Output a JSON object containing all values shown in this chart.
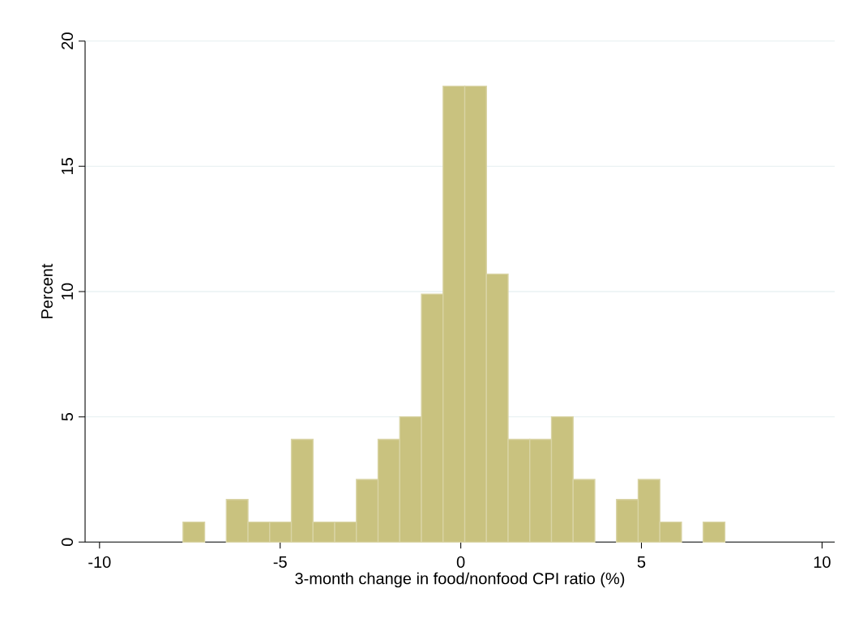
{
  "chart_data": {
    "type": "histogram",
    "xlabel": "3-month change in food/nonfood CPI ratio (%)",
    "ylabel": "Percent",
    "bins": [
      -7.69,
      -7.09,
      -6.49,
      -5.89,
      -5.29,
      -4.69,
      -4.09,
      -3.49,
      -2.89,
      -2.29,
      -1.69,
      -1.09,
      -0.49,
      0.11,
      0.71,
      1.31,
      1.91,
      2.51,
      3.11,
      3.71,
      4.31,
      4.91,
      5.51,
      6.11,
      6.71,
      7.31
    ],
    "values": [
      0.8,
      0,
      1.7,
      0.8,
      0.8,
      4.1,
      0.8,
      0.8,
      2.5,
      4.1,
      5.0,
      9.9,
      18.2,
      18.2,
      10.7,
      4.1,
      4.1,
      5.0,
      2.5,
      0,
      1.7,
      2.5,
      0.8,
      0,
      0.8
    ],
    "color": "#c9c27f",
    "xlim": [
      -10.4,
      10.35
    ],
    "ylim": [
      0,
      20
    ],
    "xticks": [
      -10,
      -5,
      0,
      5,
      10
    ],
    "yticks": [
      0,
      5,
      10,
      15,
      20
    ],
    "grid": "y"
  }
}
